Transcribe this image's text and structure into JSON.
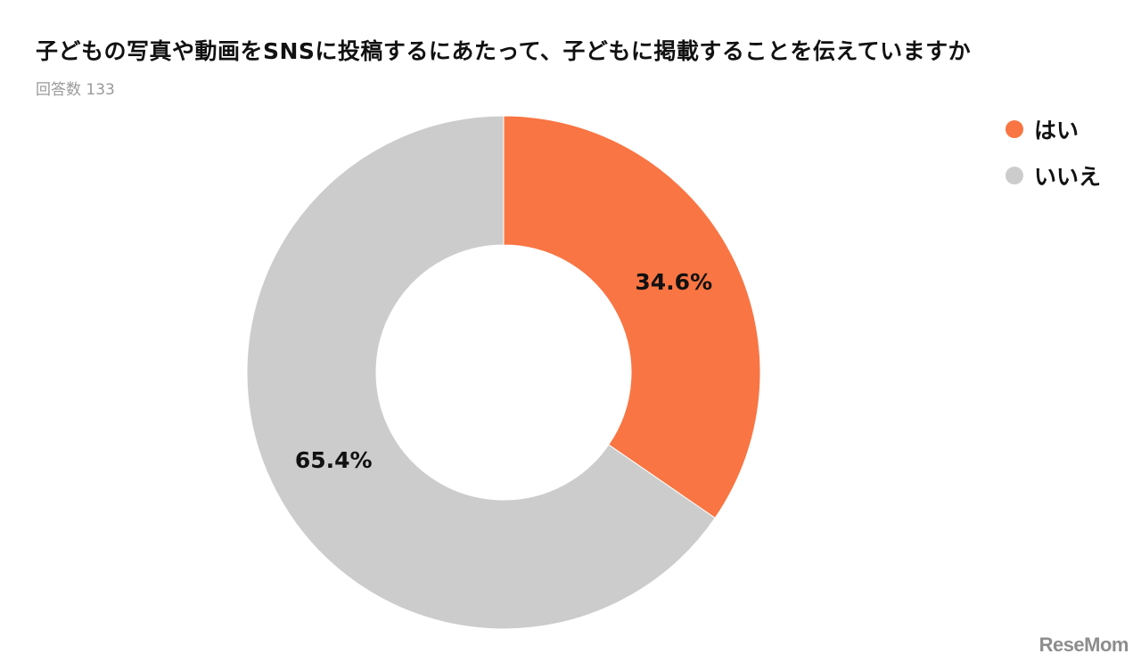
{
  "chart_data": {
    "type": "pie",
    "title": "子どもの写真や動画をSNSに投稿するにあたって、子どもに掲載することを伝えていますか",
    "subtitle": "回答数 133",
    "categories": [
      "はい",
      "いいえ"
    ],
    "values": [
      34.6,
      65.4
    ],
    "data_labels": [
      "34.6%",
      "65.4%"
    ],
    "colors": [
      "#F97543",
      "#CCCCCC"
    ],
    "donut": true,
    "legend_placement": "top-right"
  },
  "watermark": "ReseMom"
}
